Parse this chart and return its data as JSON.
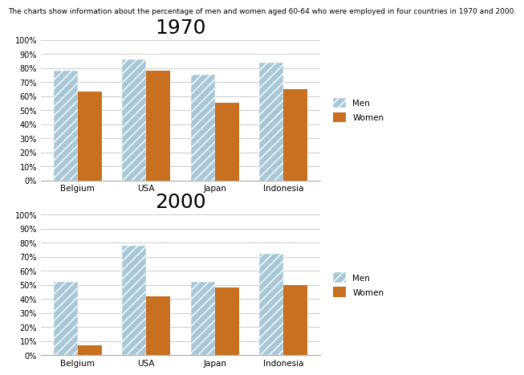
{
  "subtitle": "The charts show information about the percentage of men and women aged 60-64 who were employed in four countries in 1970 and 2000.",
  "categories": [
    "Belgium",
    "USA",
    "Japan",
    "Indonesia"
  ],
  "year1970": {
    "title": "1970",
    "men": [
      78,
      86,
      75,
      84
    ],
    "women": [
      63,
      78,
      55,
      65
    ]
  },
  "year2000": {
    "title": "2000",
    "men": [
      52,
      78,
      52,
      72
    ],
    "women": [
      7,
      42,
      48,
      50
    ]
  },
  "men_color": "#a8c8d8",
  "women_color": "#c87020",
  "bar_width": 0.35,
  "yticks": [
    0,
    10,
    20,
    30,
    40,
    50,
    60,
    70,
    80,
    90,
    100
  ],
  "ytick_labels": [
    "0%",
    "10%",
    "20%",
    "30%",
    "40%",
    "50%",
    "60%",
    "70%",
    "80%",
    "90%",
    "100%"
  ],
  "background_color": "#ffffff",
  "subtitle_fontsize": 6.5,
  "title_fontsize": 18
}
